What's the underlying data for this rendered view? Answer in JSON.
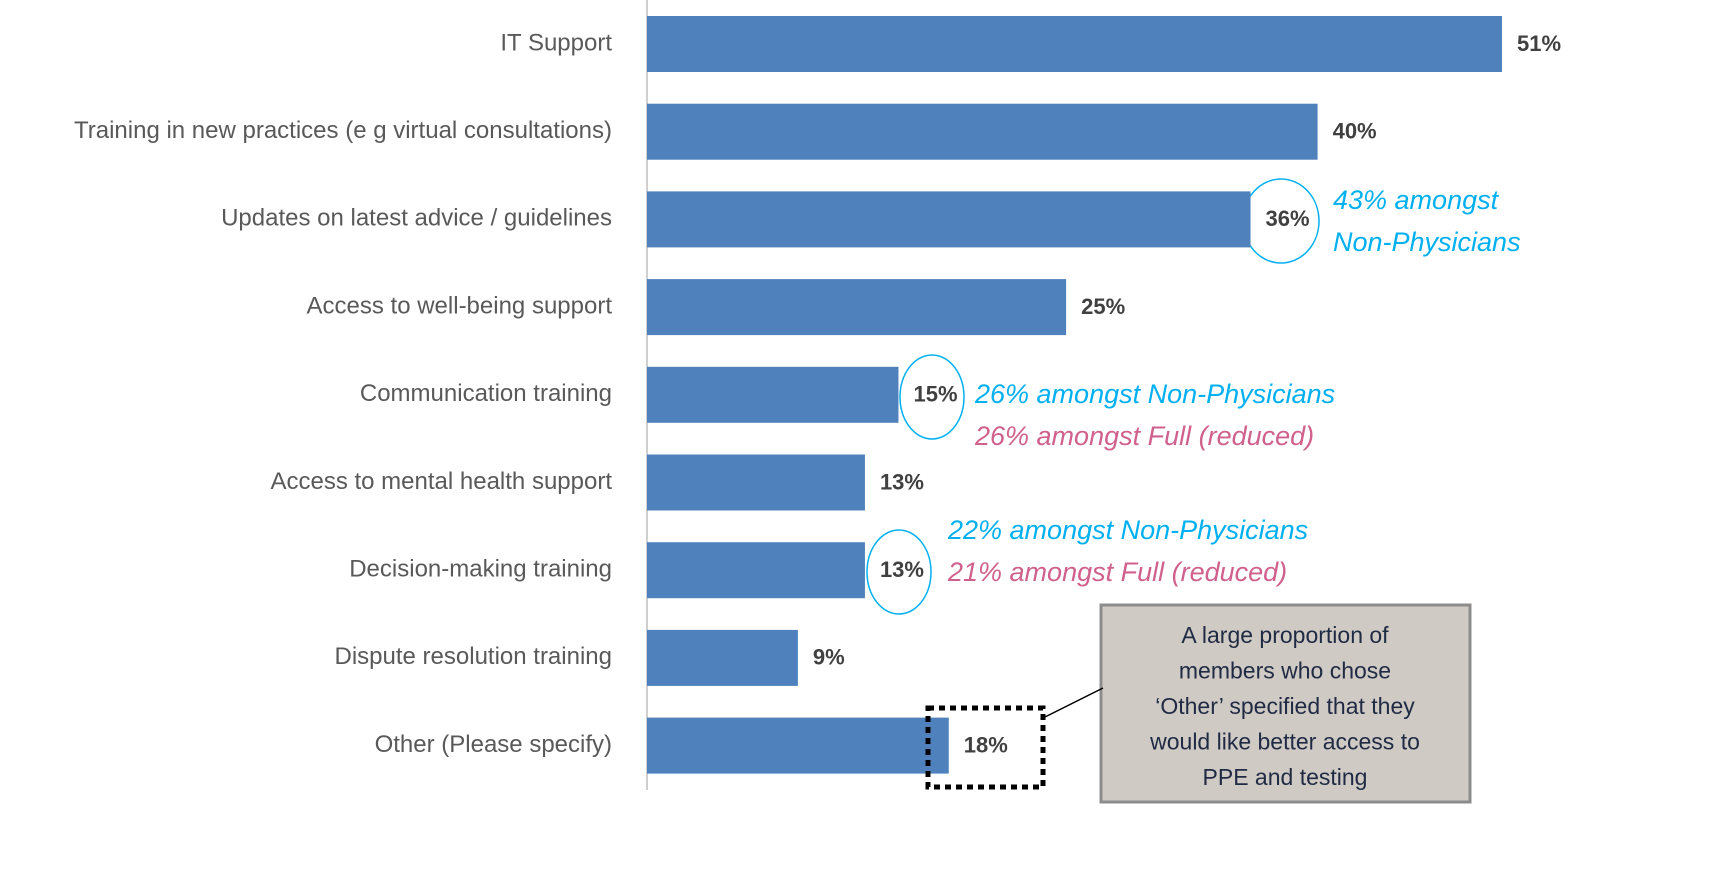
{
  "chart_data": {
    "type": "bar",
    "orientation": "horizontal",
    "categories": [
      "IT Support",
      "Training in new practices (e g  virtual consultations)",
      "Updates on latest advice / guidelines",
      "Access to well-being support",
      "Communication training",
      "Access to mental health support",
      "Decision-making training",
      "Dispute resolution training",
      "Other (Please specify)"
    ],
    "values": [
      51,
      40,
      36,
      25,
      15,
      13,
      13,
      9,
      18
    ],
    "value_labels": [
      "51%",
      "40%",
      "36%",
      "25%",
      "15%",
      "13%",
      "13%",
      "9%",
      "18%"
    ],
    "color": "#4f81bd",
    "annotations": [
      {
        "text": "43% amongst",
        "color": "#00b0f0"
      },
      {
        "text": "Non-Physicians",
        "color": "#00b0f0"
      },
      {
        "text": "26% amongst Non-Physicians",
        "color": "#00b0f0"
      },
      {
        "text": "26% amongst Full (reduced)",
        "color": "#d0608c"
      },
      {
        "text": "22% amongst Non-Physicians",
        "color": "#00b0f0"
      },
      {
        "text": "21% amongst Full (reduced)",
        "color": "#d0608c"
      }
    ],
    "callout": [
      "A large proportion of",
      "members who chose",
      "‘Other’ specified that they",
      "would like better access to",
      "PPE and testing"
    ]
  }
}
